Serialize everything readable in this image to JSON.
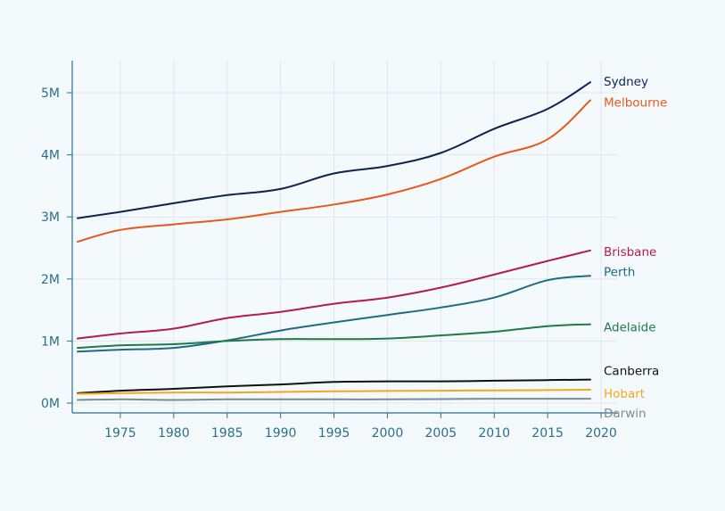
{
  "chart_data": {
    "type": "line",
    "title": "",
    "xlabel": "",
    "ylabel": "",
    "xlim": [
      1970.5,
      2021.5
    ],
    "ylim": [
      0,
      5500000
    ],
    "grid": true,
    "x_ticks": [
      1975,
      1980,
      1985,
      1990,
      1995,
      2000,
      2005,
      2010,
      2015,
      2020
    ],
    "x_tick_labels": [
      "1975",
      "1980",
      "1985",
      "1990",
      "1995",
      "2000",
      "2005",
      "2010",
      "2015",
      "2020"
    ],
    "y_ticks": [
      0,
      1000000,
      2000000,
      3000000,
      4000000,
      5000000
    ],
    "y_tick_labels": [
      "0M",
      "1M",
      "2M",
      "3M",
      "4M",
      "5M"
    ],
    "x": [
      1971,
      1975,
      1980,
      1985,
      1990,
      1995,
      2000,
      2005,
      2010,
      2015,
      2019
    ],
    "series": [
      {
        "name": "Sydney",
        "color": "#0f2250",
        "values": [
          2980000,
          3080000,
          3220000,
          3350000,
          3450000,
          3700000,
          3820000,
          4030000,
          4420000,
          4740000,
          5170000
        ]
      },
      {
        "name": "Melbourne",
        "color": "#e8581c",
        "values": [
          2600000,
          2790000,
          2880000,
          2960000,
          3080000,
          3200000,
          3360000,
          3610000,
          3970000,
          4250000,
          4880000
        ]
      },
      {
        "name": "Brisbane",
        "color": "#b51c4a",
        "values": [
          1040000,
          1120000,
          1200000,
          1370000,
          1470000,
          1600000,
          1700000,
          1860000,
          2070000,
          2290000,
          2460000
        ]
      },
      {
        "name": "Perth",
        "color": "#1e6a86",
        "values": [
          830000,
          860000,
          890000,
          1010000,
          1170000,
          1300000,
          1420000,
          1540000,
          1700000,
          1980000,
          2050000
        ]
      },
      {
        "name": "Adelaide",
        "color": "#1f7a45",
        "values": [
          890000,
          930000,
          950000,
          1000000,
          1030000,
          1030000,
          1040000,
          1090000,
          1150000,
          1240000,
          1270000
        ]
      },
      {
        "name": "Canberra",
        "color": "#111111",
        "values": [
          160000,
          200000,
          230000,
          270000,
          300000,
          340000,
          350000,
          350000,
          360000,
          370000,
          380000
        ]
      },
      {
        "name": "Hobart",
        "color": "#f2a81d",
        "values": [
          150000,
          160000,
          170000,
          170000,
          180000,
          190000,
          195000,
          200000,
          205000,
          210000,
          215000
        ]
      },
      {
        "name": "Darwin",
        "color": "#7d8a90",
        "values": [
          50000,
          60000,
          50000,
          60000,
          60000,
          60000,
          60000,
          65000,
          70000,
          70000,
          70000
        ]
      }
    ]
  }
}
